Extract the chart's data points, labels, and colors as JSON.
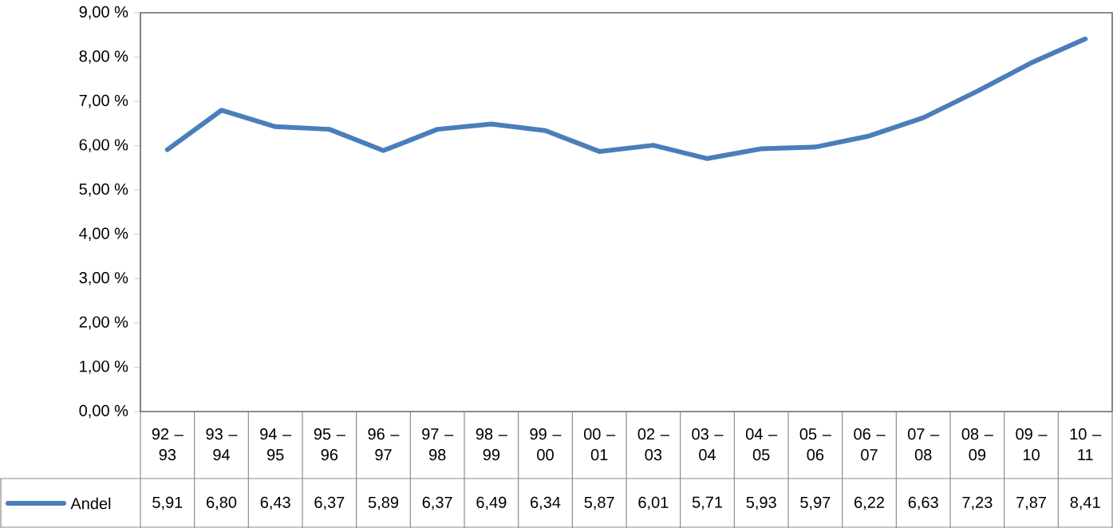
{
  "chart_data": {
    "type": "line",
    "categories": [
      "92 – 93",
      "93 – 94",
      "94 – 95",
      "95 – 96",
      "96 – 97",
      "97 – 98",
      "98 – 99",
      "99 – 00",
      "00 – 01",
      "02 – 03",
      "03 – 04",
      "04 – 05",
      "05 – 06",
      "06 – 07",
      "07 – 08",
      "08 – 09",
      "09 – 10",
      "10 – 11"
    ],
    "series": [
      {
        "name": "Andel",
        "color": "#4a7ebb",
        "values": [
          5.91,
          6.8,
          6.43,
          6.37,
          5.89,
          6.37,
          6.49,
          6.34,
          5.87,
          6.01,
          5.71,
          5.93,
          5.97,
          6.22,
          6.63,
          7.23,
          7.87,
          8.41
        ],
        "value_labels": [
          "5,91",
          "6,80",
          "6,43",
          "6,37",
          "5,89",
          "6,37",
          "6,49",
          "6,34",
          "5,87",
          "6,01",
          "5,71",
          "5,93",
          "5,97",
          "6,22",
          "6,63",
          "7,23",
          "7,87",
          "8,41"
        ]
      }
    ],
    "ylim": [
      0,
      9
    ],
    "yticks": [
      {
        "value": 0,
        "label": "0,00 %"
      },
      {
        "value": 1,
        "label": "1,00 %"
      },
      {
        "value": 2,
        "label": "2,00 %"
      },
      {
        "value": 3,
        "label": "3,00 %"
      },
      {
        "value": 4,
        "label": "4,00 %"
      },
      {
        "value": 5,
        "label": "5,00 %"
      },
      {
        "value": 6,
        "label": "6,00 %"
      },
      {
        "value": 7,
        "label": "7,00 %"
      },
      {
        "value": 8,
        "label": "8,00 %"
      },
      {
        "value": 9,
        "label": "9,00 %"
      }
    ],
    "legend": "bottom left",
    "marker": "none",
    "line_style": "solid"
  }
}
